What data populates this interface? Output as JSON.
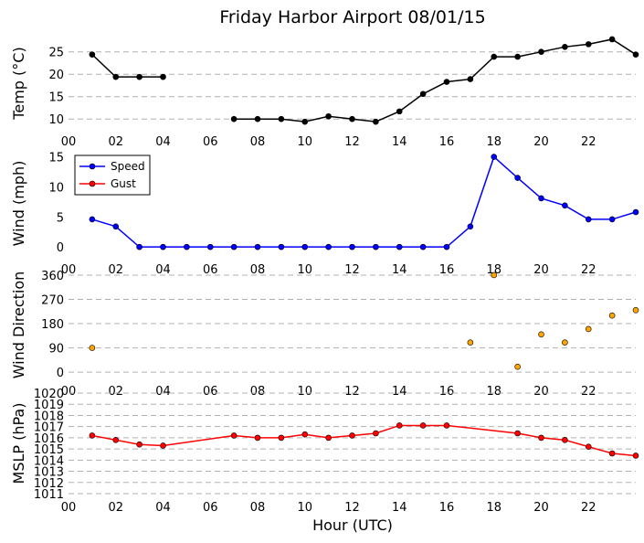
{
  "title": "Friday Harbor Airport 08/01/15",
  "xlabel": "Hour (UTC)",
  "x_tick_labels": [
    "00",
    "02",
    "04",
    "06",
    "08",
    "10",
    "12",
    "14",
    "16",
    "18",
    "20",
    "22"
  ],
  "colors": {
    "temp": "#000000",
    "speed": "#0000ff",
    "gust": "#ff0000",
    "direction": "#ffa500",
    "pressure": "#ff0000"
  },
  "chart_data": [
    {
      "type": "line",
      "name": "temperature",
      "ylabel": "Temp (°C)",
      "xlim": [
        0,
        24
      ],
      "ylim": [
        8,
        28
      ],
      "yticks": [
        10,
        15,
        20,
        25
      ],
      "grid": true,
      "series": [
        {
          "color": "#000000",
          "x": [
            1,
            2,
            3,
            4
          ],
          "y": [
            24.4,
            19.4,
            19.4,
            19.4
          ]
        },
        {
          "color": "#000000",
          "x": [
            7,
            8,
            9,
            10,
            11,
            12,
            13,
            14,
            15,
            16,
            17,
            18,
            19,
            20,
            21,
            22,
            23,
            24
          ],
          "y": [
            10.0,
            10.0,
            10.0,
            9.4,
            10.6,
            10.0,
            9.4,
            11.7,
            15.6,
            18.3,
            18.9,
            23.9,
            23.9,
            25.0,
            26.1,
            26.7,
            27.8,
            24.4
          ]
        }
      ]
    },
    {
      "type": "line",
      "name": "wind",
      "ylabel": "Wind (mph)",
      "xlim": [
        0,
        24
      ],
      "ylim": [
        -1.5,
        16
      ],
      "yticks": [
        0,
        5,
        10,
        15
      ],
      "grid": false,
      "legend": "top-left",
      "series": [
        {
          "name": "Speed",
          "color": "#0000ff",
          "x": [
            1,
            2,
            3,
            4,
            5,
            6,
            7,
            8,
            9,
            10,
            11,
            12,
            13,
            14,
            15,
            16,
            17,
            18,
            19,
            20,
            21,
            22,
            23,
            24
          ],
          "y": [
            4.6,
            3.4,
            0,
            0,
            0,
            0,
            0,
            0,
            0,
            0,
            0,
            0,
            0,
            0,
            0,
            0,
            3.4,
            15.0,
            11.5,
            8.1,
            6.9,
            4.6,
            4.6,
            5.8
          ]
        },
        {
          "name": "Gust",
          "color": "#ff0000",
          "x": [],
          "y": []
        }
      ]
    },
    {
      "type": "scatter",
      "name": "wind_direction",
      "ylabel": "Wind Direction",
      "xlim": [
        0,
        24
      ],
      "ylim": [
        -20,
        370
      ],
      "yticks": [
        0,
        90,
        180,
        270,
        360
      ],
      "grid": true,
      "series": [
        {
          "color": "#ffa500",
          "x": [
            1
          ],
          "y": [
            90
          ]
        },
        {
          "color": "#ffa500",
          "x": [
            17,
            18,
            19,
            20,
            21,
            22,
            23,
            24
          ],
          "y": [
            110,
            360,
            20,
            140,
            110,
            160,
            210,
            230
          ]
        }
      ]
    },
    {
      "type": "line",
      "name": "pressure",
      "ylabel": "MSLP (hPa)",
      "xlim": [
        0,
        24
      ],
      "ylim": [
        1011,
        1020
      ],
      "yticks": [
        1011,
        1012,
        1013,
        1014,
        1015,
        1016,
        1017,
        1018,
        1019,
        1020
      ],
      "grid": true,
      "series": [
        {
          "color": "#ff0000",
          "x": [
            1,
            2,
            3,
            4,
            7,
            8,
            9,
            10,
            11,
            12,
            13,
            14,
            15,
            16,
            19,
            20,
            21,
            22,
            23,
            24
          ],
          "y": [
            1016.2,
            1015.8,
            1015.4,
            1015.3,
            1016.2,
            1016.0,
            1016.0,
            1016.3,
            1016.0,
            1016.2,
            1016.4,
            1017.1,
            1017.1,
            1017.1,
            1016.4,
            1016.0,
            1015.8,
            1015.2,
            1014.6,
            1014.4
          ]
        }
      ]
    }
  ]
}
